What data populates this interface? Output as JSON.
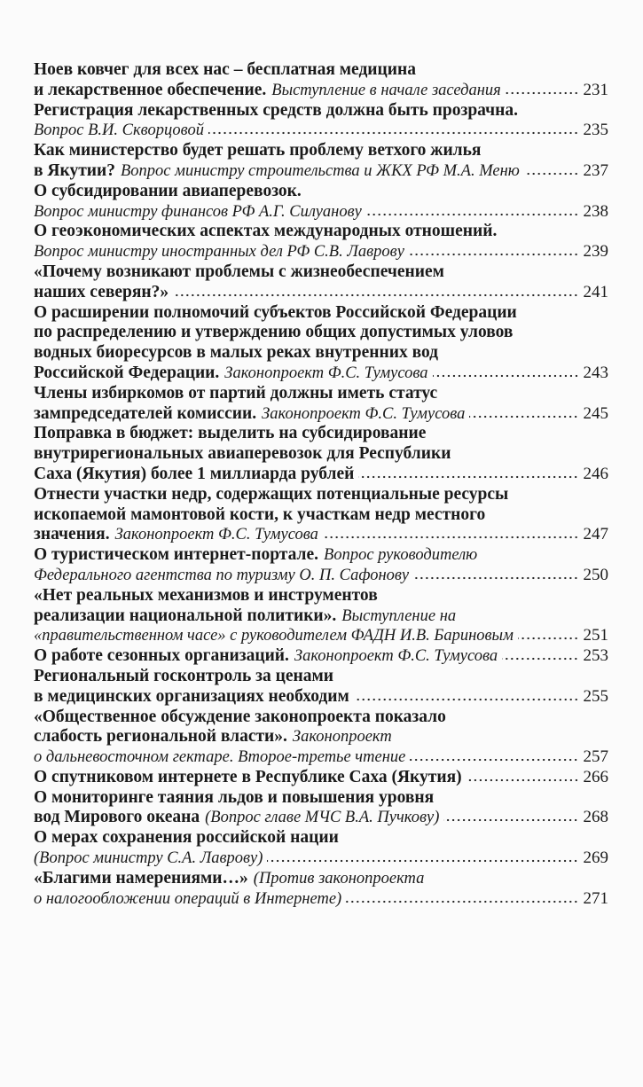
{
  "contents": [
    {
      "lines": [
        {
          "bold": "Ноев ковчег для всех нас – бесплатная медицина"
        },
        {
          "bold": "и лекарственное обеспечение.",
          "italic": "Выступление в начале заседания"
        }
      ],
      "page": 231
    },
    {
      "lines": [
        {
          "bold": "Регистрация лекарственных средств должна быть прозрачна."
        },
        {
          "italic": "Вопрос В.И. Скворцовой"
        }
      ],
      "page": 235
    },
    {
      "lines": [
        {
          "bold": "Как министерство будет решать проблему ветхого жилья"
        },
        {
          "bold": "в Якутии?",
          "italic": "Вопрос министру строительства и ЖКХ РФ М.А. Меню"
        }
      ],
      "page": 237
    },
    {
      "lines": [
        {
          "bold": "О субсидировании авиаперевозок."
        },
        {
          "italic": "Вопрос министру финансов РФ А.Г. Силуанову"
        }
      ],
      "page": 238
    },
    {
      "lines": [
        {
          "bold": "О геоэкономических аспектах международных отношений."
        },
        {
          "italic": "Вопрос министру иностранных дел РФ С.В. Лаврову"
        }
      ],
      "page": 239
    },
    {
      "lines": [
        {
          "bold": "«Почему возникают проблемы с жизнеобеспечением"
        },
        {
          "bold": "наших северян?»"
        }
      ],
      "page": 241
    },
    {
      "lines": [
        {
          "bold": "О расширении полномочий субъектов Российской Федерации"
        },
        {
          "bold": "по распределению и утверждению общих допустимых уловов"
        },
        {
          "bold": "водных биоресурсов в малых реках внутренних вод"
        },
        {
          "bold": "Российской Федерации.",
          "italic": "Законопроект Ф.С. Тумусова"
        }
      ],
      "page": 243
    },
    {
      "lines": [
        {
          "bold": "Члены избиркомов от партий должны иметь статус"
        },
        {
          "bold": "зампредседателей комиссии.",
          "italic": "Законопроект Ф.С. Тумусова"
        }
      ],
      "page": 245
    },
    {
      "lines": [
        {
          "bold": "Поправка в бюджет: выделить на субсидирование"
        },
        {
          "bold": "внутрирегиональных авиаперевозок для Республики"
        },
        {
          "bold": "Саха (Якутия) более 1 миллиарда рублей"
        }
      ],
      "page": 246
    },
    {
      "lines": [
        {
          "bold": "Отнести участки недр, содержащих потенциальные ресурсы"
        },
        {
          "bold": "ископаемой мамонтовой кости, к участкам недр местного"
        },
        {
          "bold": "значения.",
          "italic": "Законопроект Ф.С. Тумусова"
        }
      ],
      "page": 247
    },
    {
      "lines": [
        {
          "bold": "О туристическом интернет-портале.",
          "italic": "Вопрос руководителю"
        },
        {
          "italic": "Федерального агентства по туризму О. П. Сафонову"
        }
      ],
      "page": 250
    },
    {
      "lines": [
        {
          "bold": "«Нет реальных механизмов и инструментов"
        },
        {
          "bold": "реализации национальной политики».",
          "italic": "Выступление на"
        },
        {
          "italic": "«правительственном часе» с руководителем ФАДН И.В. Бариновым"
        }
      ],
      "page": 251
    },
    {
      "lines": [
        {
          "bold": "О работе сезонных организаций.",
          "italic": "Законопроект Ф.С. Тумусова"
        }
      ],
      "page": 253
    },
    {
      "lines": [
        {
          "bold": "Региональный госконтроль за ценами"
        },
        {
          "bold": "в медицинских организациях необходим"
        }
      ],
      "page": 255
    },
    {
      "lines": [
        {
          "bold": "«Общественное обсуждение законопроекта показало"
        },
        {
          "bold": "слабость региональной власти».",
          "italic": "Законопроект"
        },
        {
          "italic": "о дальневосточном гектаре. Второе-третье чтение"
        }
      ],
      "page": 257
    },
    {
      "lines": [
        {
          "bold": "О спутниковом интернете в Республике Саха (Якутия)"
        }
      ],
      "page": 266
    },
    {
      "lines": [
        {
          "bold": "О мониторинге таяния льдов и повышения уровня"
        },
        {
          "bold": "вод Мирового океана",
          "italic": "(Вопрос главе МЧС В.А. Пучкову)"
        }
      ],
      "page": 268
    },
    {
      "lines": [
        {
          "bold": "О мерах сохранения российской нации"
        },
        {
          "italic": "(Вопрос министру С.А. Лаврову)"
        }
      ],
      "page": 269
    },
    {
      "lines": [
        {
          "bold": "«Благими намерениями…»",
          "italic": "(Против законопроекта"
        },
        {
          "italic": "о налогообложении операций в Интернете)"
        }
      ],
      "page": 271
    }
  ]
}
